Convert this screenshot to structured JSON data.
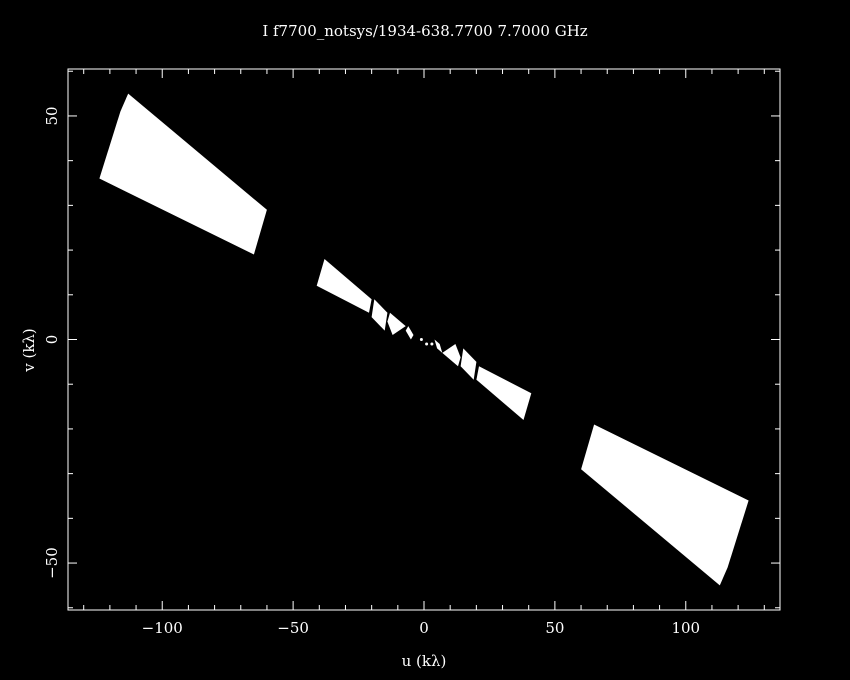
{
  "chart_data": {
    "type": "scatter",
    "title": "I f7700_notsys/1934-638.7700 7.7000 GHz",
    "xlabel": "u (kλ)",
    "ylabel": "v (kλ)",
    "xlim": [
      -136,
      136
    ],
    "ylim": [
      -60.5,
      60.5
    ],
    "x_ticks_major": [
      -100,
      -50,
      0,
      50,
      100
    ],
    "x_tick_labels": [
      "−100",
      "−50",
      "0",
      "50",
      "100"
    ],
    "y_ticks_major": [
      -50,
      0,
      50
    ],
    "y_tick_labels": [
      "−50",
      "0",
      "50"
    ],
    "x_tick_minor_step": 10,
    "y_tick_minor_step": 10,
    "grid": false,
    "colors": {
      "background": "#000000",
      "points": "#ffffff",
      "axes": "#ffffff"
    },
    "regions": [
      {
        "name": "",
        "u": [
          -113,
          -60,
          -65,
          -124,
          -116
        ],
        "v": [
          55,
          29,
          19,
          36,
          51
        ]
      },
      {
        "name": "",
        "u": [
          -38,
          -20,
          -21,
          -41
        ],
        "v": [
          18,
          9,
          6,
          12
        ]
      },
      {
        "name": "",
        "u": [
          -19,
          -14,
          -15,
          -20
        ],
        "v": [
          9,
          6,
          2,
          5
        ]
      },
      {
        "name": "",
        "u": [
          -13,
          -7,
          -12,
          -14
        ],
        "v": [
          6,
          3,
          1,
          4
        ]
      },
      {
        "name": "",
        "u": [
          -6,
          -4,
          -5,
          -7
        ],
        "v": [
          3,
          1,
          0,
          2
        ]
      },
      {
        "name": "",
        "u": [
          5,
          7,
          6,
          4
        ],
        "v": [
          -2,
          -3,
          -1,
          0
        ]
      },
      {
        "name": "",
        "u": [
          12,
          14,
          13,
          7
        ],
        "v": [
          -1,
          -4,
          -6,
          -3
        ]
      },
      {
        "name": "",
        "u": [
          15,
          20,
          19,
          14
        ],
        "v": [
          -2,
          -5,
          -9,
          -6
        ]
      },
      {
        "name": "",
        "u": [
          21,
          41,
          38,
          20
        ],
        "v": [
          -6,
          -12,
          -18,
          -9
        ]
      },
      {
        "name": "",
        "u": [
          65,
          124,
          116,
          113,
          60
        ],
        "v": [
          -19,
          -36,
          -51,
          -55,
          -29
        ]
      }
    ],
    "points": [
      {
        "u": -1,
        "v": 0
      },
      {
        "u": 1,
        "v": -1
      },
      {
        "u": 3,
        "v": -1
      }
    ]
  }
}
